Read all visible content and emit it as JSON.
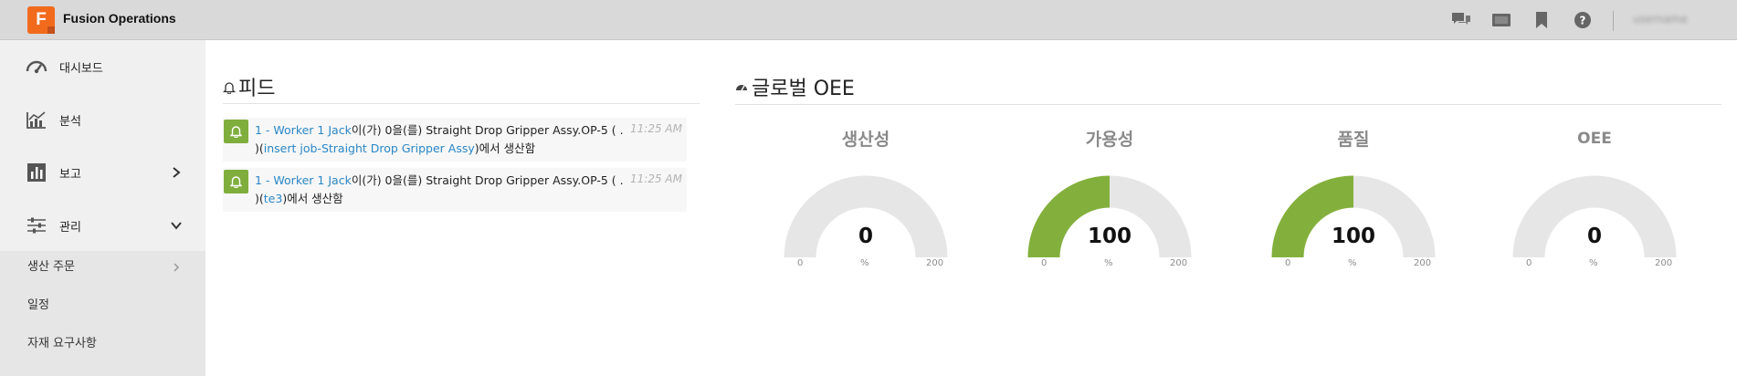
{
  "topbar": {
    "logo_letter": "F",
    "app_title": "Fusion Operations",
    "user_name": "username"
  },
  "sidebar": {
    "items": [
      {
        "label": "대시보드"
      },
      {
        "label": "분석"
      },
      {
        "label": "보고"
      },
      {
        "label": "관리"
      }
    ],
    "sub_items": [
      {
        "label": "생산 주문"
      },
      {
        "label": "일정"
      },
      {
        "label": "자재 요구사항"
      }
    ]
  },
  "feed": {
    "title": "피드",
    "items": [
      {
        "worker_link": "1 - Worker 1 Jack",
        "text_mid": "이(가) 0을(를) Straight Drop Gripper Assy.OP-5 ( . )(",
        "job_link": "insert job-Straight Drop Gripper Assy",
        "text_end": ")에서 생산함",
        "time": "11:25 AM"
      },
      {
        "worker_link": "1 - Worker 1 Jack",
        "text_mid": "이(가) 0을(를) Straight Drop Gripper Assy.OP-5 ( . )(",
        "job_link": "te3",
        "text_end": ")에서 생산함",
        "time": "11:25 AM"
      }
    ]
  },
  "oee": {
    "title": "글로벌 OEE",
    "accent_color": "#83b03c",
    "track_color": "#e6e6e6",
    "gauges": [
      {
        "title": "생산성",
        "value": "0",
        "fraction": 0,
        "min": "0",
        "unit": "%",
        "max": "200"
      },
      {
        "title": "가용성",
        "value": "100",
        "fraction": 0.5,
        "min": "0",
        "unit": "%",
        "max": "200"
      },
      {
        "title": "품질",
        "value": "100",
        "fraction": 0.5,
        "min": "0",
        "unit": "%",
        "max": "200"
      },
      {
        "title": "OEE",
        "value": "0",
        "fraction": 0,
        "min": "0",
        "unit": "%",
        "max": "200"
      }
    ]
  }
}
